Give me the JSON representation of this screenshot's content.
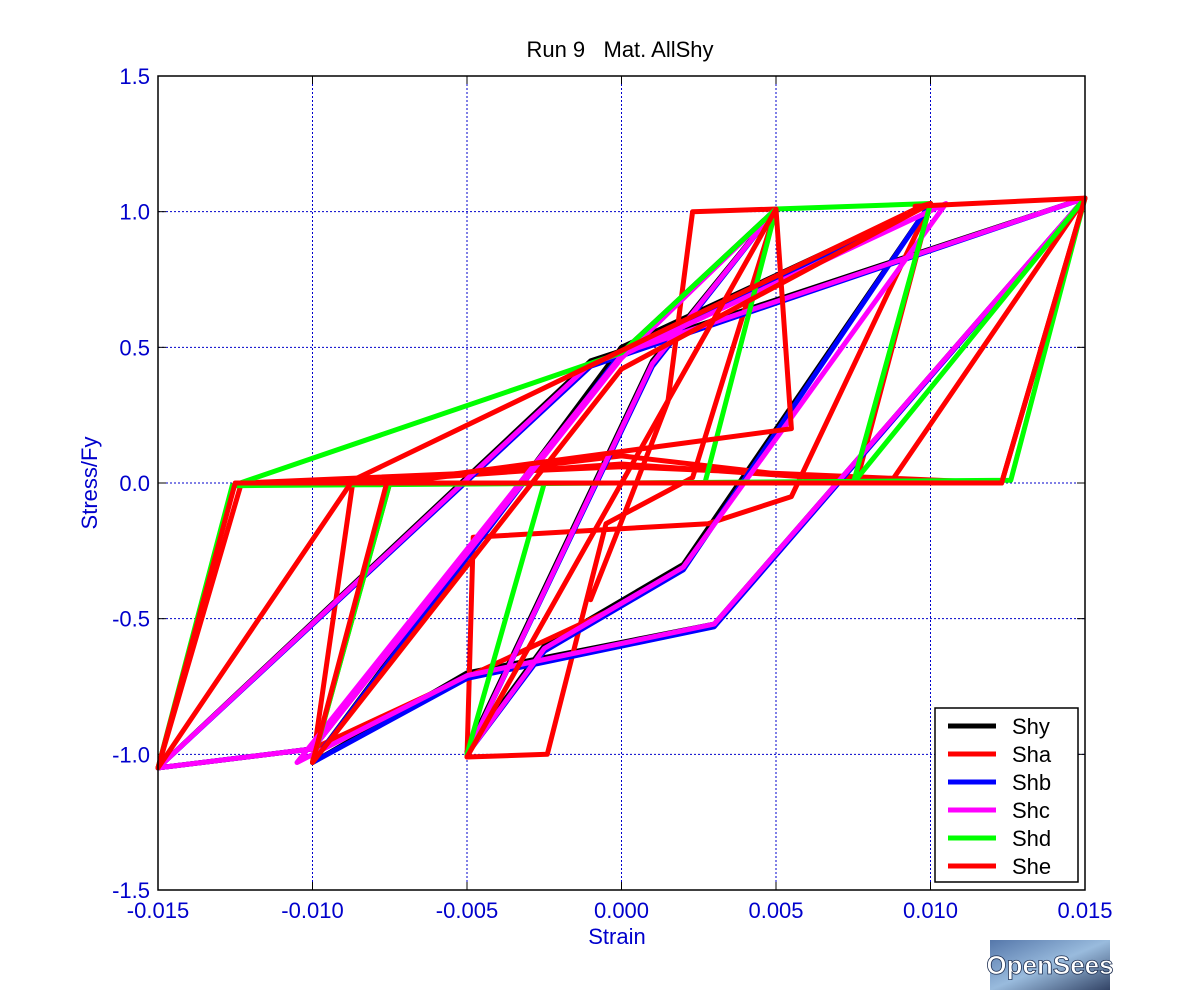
{
  "chart_data": {
    "type": "line",
    "title": "Run 9   Mat. AllShy",
    "xlabel": "Strain",
    "ylabel": "Stress/Fy",
    "xlim": [
      -0.015,
      0.015
    ],
    "ylim": [
      -1.5,
      1.5
    ],
    "xticks": [
      -0.015,
      -0.01,
      -0.005,
      0.0,
      0.005,
      0.01,
      0.015
    ],
    "xtick_labels": [
      "-0.015",
      "-0.010",
      "-0.005",
      "0.000",
      "0.005",
      "0.010",
      "0.015"
    ],
    "yticks": [
      1.5,
      1.0,
      0.5,
      0.0,
      -0.5,
      -1.0,
      -1.5
    ],
    "ytick_labels": [
      "1.5",
      "1.0",
      "0.5",
      "0.0",
      "-0.5",
      "-1.0",
      "-1.5"
    ],
    "grid": true,
    "legend_position": "bottom-right",
    "series": [
      {
        "name": "Shy",
        "color": "#000000",
        "x": [
          0,
          0.005,
          0.001,
          -0.005,
          -0.0025,
          0.002,
          0.01,
          0.0,
          -0.01,
          -0.005,
          0.003,
          0.015,
          -0.001,
          -0.015,
          -0.01,
          0.0
        ],
        "y": [
          0.48,
          1.01,
          0.45,
          -0.99,
          -0.6,
          -0.3,
          1.03,
          0.5,
          -1.03,
          -0.7,
          -0.52,
          1.05,
          0.45,
          -1.05,
          -0.98,
          0.48
        ]
      },
      {
        "name": "Sha",
        "color": "#ff0000",
        "x": [
          -0.001,
          -0.0002,
          0.0015,
          0.0023,
          0.005,
          0.0023,
          -0.0005,
          -0.0024,
          -0.005,
          -0.0048,
          0.0028,
          0.0055,
          0.01,
          0.0076,
          0.0,
          -0.0075,
          -0.01,
          -0.0087,
          0.0,
          0.0087,
          0.015,
          0.0123,
          0.0,
          -0.0123,
          -0.015,
          -0.01,
          0.0
        ],
        "y": [
          -0.43,
          -0.2,
          0.3,
          1.0,
          1.01,
          0.02,
          -0.15,
          -1.0,
          -1.01,
          -0.2,
          -0.15,
          -0.05,
          1.03,
          0.0,
          0.1,
          0.0,
          -1.03,
          0.0,
          0.07,
          0.0,
          1.05,
          0.0,
          0.06,
          0.0,
          -1.05,
          -0.98,
          -0.45
        ]
      },
      {
        "name": "Shb",
        "color": "#0000ff",
        "x": [
          0,
          0.005,
          0.001,
          -0.005,
          -0.0025,
          0.002,
          0.01,
          0.0,
          -0.01,
          -0.005,
          0.003,
          0.015,
          -0.001,
          -0.015,
          -0.01,
          0.0
        ],
        "y": [
          0.47,
          1.01,
          0.43,
          -1.0,
          -0.62,
          -0.32,
          1.03,
          0.48,
          -1.03,
          -0.72,
          -0.53,
          1.05,
          0.43,
          -1.05,
          -0.98,
          0.47
        ]
      },
      {
        "name": "Shc",
        "color": "#ff00ff",
        "x": [
          0,
          0.005,
          0.001,
          -0.005,
          -0.0025,
          0.002,
          0.0105,
          0.0,
          -0.0105,
          -0.005,
          0.003,
          0.015,
          -0.001,
          -0.015,
          -0.01,
          0.0
        ],
        "y": [
          0.46,
          1.01,
          0.44,
          -1.0,
          -0.61,
          -0.31,
          1.03,
          0.47,
          -1.03,
          -0.71,
          -0.52,
          1.05,
          0.44,
          -1.05,
          -0.98,
          0.46
        ]
      },
      {
        "name": "Shd",
        "color": "#00ff00",
        "x": [
          0,
          0.005,
          0.0027,
          -0.0025,
          -0.005,
          -0.0025,
          0.0027,
          0.005,
          0.01,
          0.0075,
          -0.0075,
          -0.01,
          -0.0075,
          0.0075,
          0.015,
          0.0126,
          -0.0126,
          -0.015,
          -0.0126,
          0.0
        ],
        "y": [
          0.48,
          1.01,
          0.0,
          0.0,
          -1.0,
          0.0,
          0.0,
          1.01,
          1.03,
          0.0,
          0.0,
          -1.03,
          0.0,
          0.0,
          1.05,
          0.01,
          -0.01,
          -1.05,
          -0.01,
          0.48
        ]
      },
      {
        "name": "She",
        "color": "#ff0000",
        "x": [
          0.0095,
          0.015,
          0.0123,
          -0.0125,
          -0.015,
          -0.0087,
          0.0097,
          0.01,
          0.0,
          -0.01,
          -0.0076,
          0.0055,
          0.005,
          -0.005
        ],
        "y": [
          1.02,
          1.05,
          0.0,
          0.0,
          -1.05,
          0.01,
          1.02,
          1.03,
          0.42,
          -1.03,
          0.0,
          0.2,
          1.01,
          -1.01
        ]
      }
    ]
  },
  "legend": {
    "entries": [
      {
        "name": "Shy",
        "color": "#000000"
      },
      {
        "name": "Sha",
        "color": "#ff0000"
      },
      {
        "name": "Shb",
        "color": "#0000ff"
      },
      {
        "name": "Shc",
        "color": "#ff00ff"
      },
      {
        "name": "Shd",
        "color": "#00ff00"
      },
      {
        "name": "She",
        "color": "#ff0000"
      }
    ]
  },
  "logo": {
    "text": "OpenSees"
  },
  "colors": {
    "axis_text": "#0000cc",
    "grid": "#0000cc",
    "frame": "#000000"
  }
}
